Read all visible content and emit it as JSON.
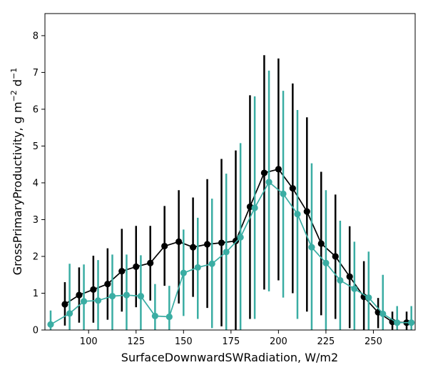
{
  "chart_data": {
    "type": "line",
    "title": "",
    "xlabel": "SurfaceDownwardSWRadiation,  W/m2",
    "ylabel": "GrossPrimaryProductivity,  g m",
    "ylabel_sup1": "−2",
    "ylabel_mid": " d",
    "ylabel_sup2": "−1",
    "xlim": [
      77,
      272
    ],
    "ylim": [
      0,
      8.6
    ],
    "xticks": [
      100,
      125,
      150,
      175,
      200,
      225,
      250
    ],
    "yticks": [
      0,
      1,
      2,
      3,
      4,
      5,
      6,
      7,
      8
    ],
    "grid": false,
    "series": [
      {
        "name": "black",
        "color": "#000000",
        "x": [
          87.5,
          95,
          102.5,
          110,
          117.5,
          125,
          132.5,
          140,
          147.5,
          155,
          162.5,
          170,
          177.5,
          185,
          192.5,
          200,
          207.5,
          215,
          222.5,
          230,
          237.5,
          245,
          252.5,
          260,
          267.5
        ],
        "y": [
          0.7,
          0.95,
          1.1,
          1.25,
          1.6,
          1.72,
          1.82,
          2.28,
          2.4,
          2.25,
          2.33,
          2.37,
          2.42,
          3.35,
          4.27,
          4.37,
          3.85,
          3.22,
          2.35,
          2.0,
          1.45,
          0.9,
          0.48,
          0.22,
          0.2
        ],
        "err_low": [
          0.12,
          0.2,
          0.2,
          0.28,
          0.5,
          0.62,
          0.8,
          1.2,
          0.72,
          0.9,
          0.6,
          0.1,
          0.0,
          0.3,
          1.1,
          1.35,
          1.0,
          0.5,
          0.4,
          0.3,
          0.05,
          0.0,
          0.05,
          0.0,
          0.0
        ],
        "err_high": [
          1.3,
          1.7,
          2.02,
          2.22,
          2.75,
          2.83,
          2.83,
          3.37,
          3.8,
          3.6,
          4.1,
          4.65,
          4.88,
          6.38,
          7.47,
          7.38,
          6.7,
          5.78,
          4.3,
          3.68,
          2.82,
          1.87,
          0.87,
          0.5,
          0.5
        ]
      },
      {
        "name": "teal",
        "color": "#3aada3",
        "x": [
          80,
          90,
          97.5,
          105,
          112.5,
          120,
          127.5,
          135,
          142.5,
          150,
          157.5,
          165,
          172.5,
          180,
          187.5,
          195,
          202.5,
          210,
          217.5,
          225,
          232.5,
          240,
          247.5,
          255,
          262.5,
          270
        ],
        "y": [
          0.15,
          0.45,
          0.78,
          0.8,
          0.92,
          0.95,
          0.92,
          0.38,
          0.36,
          1.55,
          1.7,
          1.8,
          2.12,
          2.52,
          3.32,
          4.02,
          3.7,
          3.15,
          2.25,
          1.82,
          1.35,
          1.12,
          0.88,
          0.44,
          0.2,
          0.2
        ],
        "err_low": [
          0.0,
          0.0,
          0.0,
          0.0,
          0.0,
          0.0,
          0.0,
          0.0,
          0.0,
          0.38,
          0.3,
          0.05,
          0.0,
          0.0,
          0.3,
          1.05,
          0.88,
          0.3,
          0.0,
          0.0,
          0.0,
          0.0,
          0.0,
          0.0,
          0.0,
          0.0
        ],
        "err_high": [
          0.53,
          1.8,
          1.78,
          1.9,
          2.05,
          2.05,
          2.03,
          1.25,
          1.2,
          2.73,
          3.05,
          3.57,
          4.25,
          5.08,
          6.35,
          7.05,
          6.5,
          5.98,
          4.53,
          3.8,
          2.97,
          2.4,
          2.13,
          1.5,
          0.65,
          0.65
        ]
      }
    ]
  }
}
